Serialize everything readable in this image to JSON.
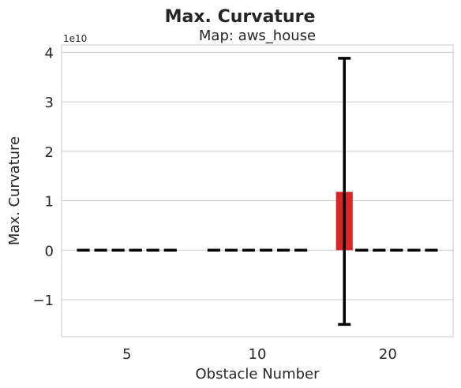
{
  "chart_data": {
    "type": "bar",
    "title": "Max. Curvature",
    "subtitle": "Map: aws_house",
    "xlabel": "Obstacle Number",
    "ylabel": "Max. Curvature",
    "y_offset_label": "1e10",
    "y_scale_factor": 10000000000,
    "ylim": [
      -1.75,
      4.15
    ],
    "yticks": [
      -1,
      0,
      1,
      2,
      3,
      4
    ],
    "ytick_labels": [
      "−1",
      "0",
      "1",
      "2",
      "3",
      "4"
    ],
    "grid": "horizontal",
    "groups": [
      {
        "label": "5",
        "values": [
          0,
          0,
          0,
          0,
          0,
          0
        ],
        "err_low": [
          0,
          0,
          0,
          0,
          0,
          0
        ],
        "err_high": [
          0,
          0,
          0,
          0,
          0,
          0
        ]
      },
      {
        "label": "10",
        "values": [
          0,
          0,
          0,
          0,
          0,
          0
        ],
        "err_low": [
          0,
          0,
          0,
          0,
          0,
          0
        ],
        "err_high": [
          0,
          0,
          0,
          0,
          0,
          0
        ]
      },
      {
        "label": "20",
        "values": [
          1.18,
          0,
          0,
          0,
          0,
          0
        ],
        "err_low": [
          -1.5,
          0,
          0,
          0,
          0,
          0
        ],
        "err_high": [
          3.88,
          0,
          0,
          0,
          0,
          0
        ]
      }
    ],
    "bar_color": "#d62728",
    "errorbar_color": "#000000"
  }
}
